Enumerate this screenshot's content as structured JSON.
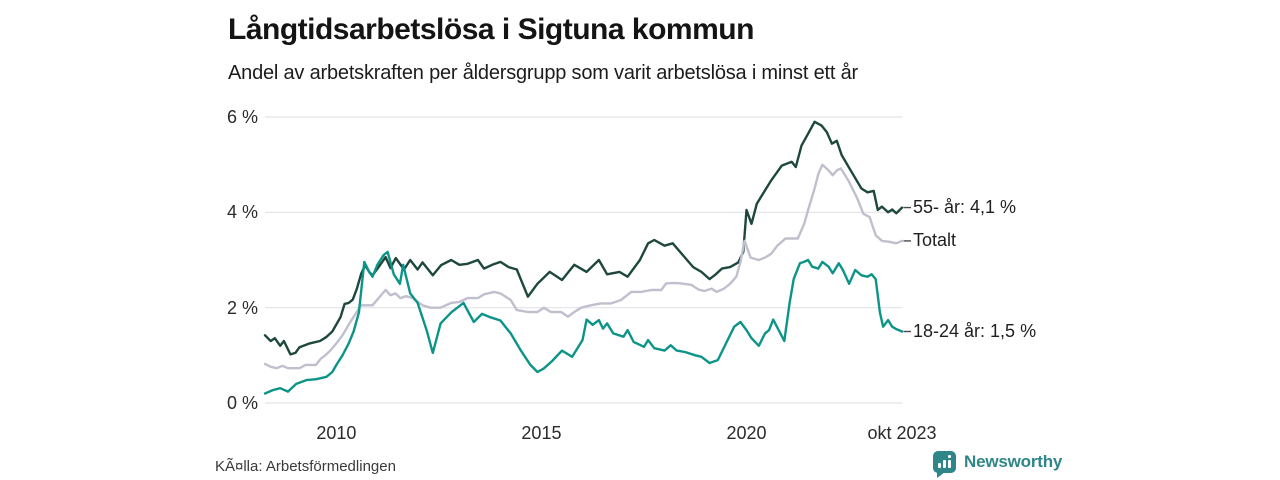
{
  "header": {
    "title": "Långtidsarbetslösa i Sigtuna kommun",
    "subtitle": "Andel av arbetskraften per åldersgrupp som varit arbetslösa i minst ett år"
  },
  "footer": {
    "source": "KÃ¤lla: Arbetsförmedlingen",
    "brand": "Newsworthy"
  },
  "colors": {
    "series_55": "#1e483d",
    "series_total": "#c0bfce",
    "series_1824": "#0d9488",
    "grid": "#e4e4ea",
    "leader_dash": "#4a4a4a",
    "brand": "#2e8688"
  },
  "chart_data": {
    "type": "line",
    "title": "Långtidsarbetslösa i Sigtuna kommun",
    "subtitle": "Andel av arbetskraften per åldersgrupp som varit arbetslösa i minst ett år",
    "source": "KÃ¤lla: Arbetsförmedlingen",
    "grid": "horizontal",
    "legend_position": "end-labels-right",
    "x_axis": {
      "range": [
        2008.26,
        2023.79
      ],
      "ticks": [
        {
          "v": 2010,
          "label": "2010"
        },
        {
          "v": 2015,
          "label": "2015"
        },
        {
          "v": 2020,
          "label": "2020"
        },
        {
          "v": 2023.79,
          "label": "okt 2023"
        }
      ]
    },
    "y_axis": {
      "range": [
        0,
        6
      ],
      "unit": "%",
      "ticks": [
        {
          "v": 0,
          "label": "0 %"
        },
        {
          "v": 2,
          "label": "2 %"
        },
        {
          "v": 4,
          "label": "4 %"
        },
        {
          "v": 6,
          "label": "6 %"
        }
      ]
    },
    "series": [
      {
        "id": "55-ar",
        "name": "55- år",
        "end_label": "55- år: 4,1 %",
        "last_value": 4.1,
        "color": "#1e483d",
        "points": [
          [
            2008.26,
            1.42
          ],
          [
            2008.4,
            1.3
          ],
          [
            2008.5,
            1.36
          ],
          [
            2008.63,
            1.2
          ],
          [
            2008.72,
            1.3
          ],
          [
            2008.88,
            1.02
          ],
          [
            2009.0,
            1.05
          ],
          [
            2009.1,
            1.17
          ],
          [
            2009.35,
            1.25
          ],
          [
            2009.6,
            1.3
          ],
          [
            2009.75,
            1.38
          ],
          [
            2009.9,
            1.5
          ],
          [
            2010.0,
            1.65
          ],
          [
            2010.1,
            1.8
          ],
          [
            2010.2,
            2.08
          ],
          [
            2010.3,
            2.1
          ],
          [
            2010.4,
            2.17
          ],
          [
            2010.5,
            2.4
          ],
          [
            2010.6,
            2.7
          ],
          [
            2010.7,
            2.89
          ],
          [
            2010.8,
            2.75
          ],
          [
            2010.88,
            2.68
          ],
          [
            2011.03,
            2.85
          ],
          [
            2011.2,
            3.06
          ],
          [
            2011.32,
            2.83
          ],
          [
            2011.45,
            3.04
          ],
          [
            2011.65,
            2.8
          ],
          [
            2011.8,
            3.0
          ],
          [
            2011.98,
            2.8
          ],
          [
            2012.1,
            2.95
          ],
          [
            2012.35,
            2.68
          ],
          [
            2012.55,
            2.89
          ],
          [
            2012.8,
            3.0
          ],
          [
            2013.0,
            2.9
          ],
          [
            2013.2,
            2.92
          ],
          [
            2013.45,
            3.0
          ],
          [
            2013.6,
            2.82
          ],
          [
            2013.8,
            2.9
          ],
          [
            2014.0,
            2.96
          ],
          [
            2014.2,
            2.85
          ],
          [
            2014.4,
            2.8
          ],
          [
            2014.67,
            2.23
          ],
          [
            2014.9,
            2.5
          ],
          [
            2015.2,
            2.75
          ],
          [
            2015.5,
            2.58
          ],
          [
            2015.8,
            2.9
          ],
          [
            2016.1,
            2.75
          ],
          [
            2016.4,
            3.0
          ],
          [
            2016.6,
            2.7
          ],
          [
            2016.9,
            2.75
          ],
          [
            2017.1,
            2.65
          ],
          [
            2017.4,
            3.0
          ],
          [
            2017.6,
            3.35
          ],
          [
            2017.75,
            3.42
          ],
          [
            2018.0,
            3.3
          ],
          [
            2018.2,
            3.35
          ],
          [
            2018.5,
            3.05
          ],
          [
            2018.7,
            2.85
          ],
          [
            2018.9,
            2.75
          ],
          [
            2019.1,
            2.6
          ],
          [
            2019.25,
            2.7
          ],
          [
            2019.4,
            2.82
          ],
          [
            2019.6,
            2.85
          ],
          [
            2019.8,
            2.95
          ],
          [
            2019.92,
            3.17
          ],
          [
            2020.0,
            4.05
          ],
          [
            2020.12,
            3.76
          ],
          [
            2020.25,
            4.18
          ],
          [
            2020.37,
            4.35
          ],
          [
            2020.6,
            4.67
          ],
          [
            2020.86,
            4.98
          ],
          [
            2021.1,
            5.06
          ],
          [
            2021.2,
            4.95
          ],
          [
            2021.34,
            5.4
          ],
          [
            2021.5,
            5.65
          ],
          [
            2021.66,
            5.9
          ],
          [
            2021.83,
            5.82
          ],
          [
            2021.96,
            5.68
          ],
          [
            2022.08,
            5.44
          ],
          [
            2022.2,
            5.5
          ],
          [
            2022.32,
            5.2
          ],
          [
            2022.56,
            4.85
          ],
          [
            2022.8,
            4.5
          ],
          [
            2022.95,
            4.42
          ],
          [
            2023.1,
            4.45
          ],
          [
            2023.2,
            4.05
          ],
          [
            2023.3,
            4.12
          ],
          [
            2023.45,
            4.0
          ],
          [
            2023.55,
            4.06
          ],
          [
            2023.65,
            3.98
          ],
          [
            2023.79,
            4.1
          ]
        ]
      },
      {
        "id": "totalt",
        "name": "Totalt",
        "end_label": "Totalt",
        "last_value": 3.4,
        "color": "#c0bfce",
        "points": [
          [
            2008.26,
            0.82
          ],
          [
            2008.4,
            0.76
          ],
          [
            2008.55,
            0.73
          ],
          [
            2008.68,
            0.78
          ],
          [
            2008.82,
            0.73
          ],
          [
            2009.1,
            0.73
          ],
          [
            2009.25,
            0.8
          ],
          [
            2009.5,
            0.8
          ],
          [
            2009.62,
            0.93
          ],
          [
            2009.73,
            1.0
          ],
          [
            2009.85,
            1.1
          ],
          [
            2010.0,
            1.25
          ],
          [
            2010.15,
            1.42
          ],
          [
            2010.34,
            1.7
          ],
          [
            2010.49,
            1.9
          ],
          [
            2010.6,
            2.05
          ],
          [
            2010.88,
            2.05
          ],
          [
            2011.03,
            2.2
          ],
          [
            2011.2,
            2.37
          ],
          [
            2011.32,
            2.26
          ],
          [
            2011.44,
            2.3
          ],
          [
            2011.56,
            2.2
          ],
          [
            2011.7,
            2.24
          ],
          [
            2011.86,
            2.2
          ],
          [
            2012.1,
            2.05
          ],
          [
            2012.3,
            2.0
          ],
          [
            2012.54,
            2.0
          ],
          [
            2012.8,
            2.1
          ],
          [
            2013.0,
            2.12
          ],
          [
            2013.2,
            2.2
          ],
          [
            2013.45,
            2.2
          ],
          [
            2013.6,
            2.28
          ],
          [
            2013.85,
            2.33
          ],
          [
            2014.0,
            2.3
          ],
          [
            2014.25,
            2.16
          ],
          [
            2014.4,
            1.95
          ],
          [
            2014.67,
            1.91
          ],
          [
            2014.9,
            1.91
          ],
          [
            2015.06,
            2.0
          ],
          [
            2015.23,
            1.91
          ],
          [
            2015.48,
            1.91
          ],
          [
            2015.65,
            1.81
          ],
          [
            2015.8,
            1.91
          ],
          [
            2015.97,
            2.0
          ],
          [
            2016.2,
            2.05
          ],
          [
            2016.45,
            2.09
          ],
          [
            2016.7,
            2.09
          ],
          [
            2016.94,
            2.16
          ],
          [
            2017.19,
            2.33
          ],
          [
            2017.43,
            2.33
          ],
          [
            2017.68,
            2.37
          ],
          [
            2017.92,
            2.37
          ],
          [
            2018.04,
            2.51
          ],
          [
            2018.24,
            2.52
          ],
          [
            2018.4,
            2.51
          ],
          [
            2018.65,
            2.48
          ],
          [
            2018.83,
            2.38
          ],
          [
            2018.97,
            2.35
          ],
          [
            2019.15,
            2.4
          ],
          [
            2019.27,
            2.33
          ],
          [
            2019.45,
            2.4
          ],
          [
            2019.6,
            2.5
          ],
          [
            2019.75,
            2.65
          ],
          [
            2019.85,
            2.95
          ],
          [
            2019.95,
            3.4
          ],
          [
            2020.1,
            3.05
          ],
          [
            2020.3,
            3.0
          ],
          [
            2020.45,
            3.05
          ],
          [
            2020.6,
            3.13
          ],
          [
            2020.75,
            3.3
          ],
          [
            2020.95,
            3.45
          ],
          [
            2021.1,
            3.45
          ],
          [
            2021.25,
            3.45
          ],
          [
            2021.4,
            3.75
          ],
          [
            2021.5,
            4.05
          ],
          [
            2021.66,
            4.5
          ],
          [
            2021.75,
            4.8
          ],
          [
            2021.85,
            5.0
          ],
          [
            2022.0,
            4.88
          ],
          [
            2022.1,
            4.78
          ],
          [
            2022.2,
            4.88
          ],
          [
            2022.3,
            4.92
          ],
          [
            2022.5,
            4.64
          ],
          [
            2022.7,
            4.29
          ],
          [
            2022.85,
            3.97
          ],
          [
            2023.0,
            3.9
          ],
          [
            2023.15,
            3.52
          ],
          [
            2023.3,
            3.4
          ],
          [
            2023.5,
            3.38
          ],
          [
            2023.65,
            3.35
          ],
          [
            2023.79,
            3.4
          ]
        ]
      },
      {
        "id": "18-24-ar",
        "name": "18-24 år",
        "end_label": "18-24 år: 1,5 %",
        "last_value": 1.5,
        "color": "#0d9488",
        "points": [
          [
            2008.26,
            0.2
          ],
          [
            2008.45,
            0.27
          ],
          [
            2008.63,
            0.31
          ],
          [
            2008.82,
            0.24
          ],
          [
            2009.02,
            0.4
          ],
          [
            2009.27,
            0.48
          ],
          [
            2009.51,
            0.5
          ],
          [
            2009.76,
            0.55
          ],
          [
            2009.9,
            0.65
          ],
          [
            2010.0,
            0.8
          ],
          [
            2010.15,
            1.0
          ],
          [
            2010.3,
            1.25
          ],
          [
            2010.42,
            1.5
          ],
          [
            2010.55,
            1.9
          ],
          [
            2010.68,
            2.96
          ],
          [
            2010.8,
            2.75
          ],
          [
            2010.88,
            2.65
          ],
          [
            2011.0,
            2.9
          ],
          [
            2011.15,
            3.1
          ],
          [
            2011.25,
            3.17
          ],
          [
            2011.4,
            2.7
          ],
          [
            2011.55,
            2.5
          ],
          [
            2011.63,
            2.9
          ],
          [
            2011.8,
            2.3
          ],
          [
            2011.98,
            2.1
          ],
          [
            2012.2,
            1.53
          ],
          [
            2012.35,
            1.05
          ],
          [
            2012.54,
            1.67
          ],
          [
            2012.8,
            1.9
          ],
          [
            2013.1,
            2.1
          ],
          [
            2013.35,
            1.7
          ],
          [
            2013.55,
            1.87
          ],
          [
            2013.75,
            1.8
          ],
          [
            2014.0,
            1.73
          ],
          [
            2014.25,
            1.46
          ],
          [
            2014.5,
            1.1
          ],
          [
            2014.73,
            0.8
          ],
          [
            2014.9,
            0.65
          ],
          [
            2015.05,
            0.72
          ],
          [
            2015.25,
            0.87
          ],
          [
            2015.5,
            1.1
          ],
          [
            2015.75,
            0.97
          ],
          [
            2016.0,
            1.32
          ],
          [
            2016.1,
            1.75
          ],
          [
            2016.25,
            1.64
          ],
          [
            2016.4,
            1.74
          ],
          [
            2016.5,
            1.56
          ],
          [
            2016.6,
            1.67
          ],
          [
            2016.75,
            1.46
          ],
          [
            2017.0,
            1.39
          ],
          [
            2017.1,
            1.53
          ],
          [
            2017.25,
            1.28
          ],
          [
            2017.5,
            1.18
          ],
          [
            2017.6,
            1.32
          ],
          [
            2017.75,
            1.15
          ],
          [
            2018.0,
            1.1
          ],
          [
            2018.15,
            1.21
          ],
          [
            2018.3,
            1.1
          ],
          [
            2018.5,
            1.07
          ],
          [
            2018.75,
            1.0
          ],
          [
            2018.9,
            0.97
          ],
          [
            2019.1,
            0.84
          ],
          [
            2019.3,
            0.9
          ],
          [
            2019.5,
            1.25
          ],
          [
            2019.7,
            1.6
          ],
          [
            2019.85,
            1.7
          ],
          [
            2020.0,
            1.53
          ],
          [
            2020.12,
            1.36
          ],
          [
            2020.3,
            1.2
          ],
          [
            2020.45,
            1.46
          ],
          [
            2020.55,
            1.53
          ],
          [
            2020.65,
            1.75
          ],
          [
            2020.8,
            1.5
          ],
          [
            2020.92,
            1.3
          ],
          [
            2021.05,
            2.1
          ],
          [
            2021.15,
            2.6
          ],
          [
            2021.3,
            2.93
          ],
          [
            2021.4,
            2.96
          ],
          [
            2021.5,
            3.0
          ],
          [
            2021.6,
            2.86
          ],
          [
            2021.75,
            2.82
          ],
          [
            2021.85,
            2.96
          ],
          [
            2022.0,
            2.86
          ],
          [
            2022.1,
            2.72
          ],
          [
            2022.25,
            2.93
          ],
          [
            2022.35,
            2.79
          ],
          [
            2022.5,
            2.5
          ],
          [
            2022.65,
            2.79
          ],
          [
            2022.8,
            2.68
          ],
          [
            2022.95,
            2.65
          ],
          [
            2023.05,
            2.7
          ],
          [
            2023.15,
            2.6
          ],
          [
            2023.25,
            1.9
          ],
          [
            2023.33,
            1.6
          ],
          [
            2023.45,
            1.74
          ],
          [
            2023.55,
            1.6
          ],
          [
            2023.65,
            1.55
          ],
          [
            2023.79,
            1.5
          ]
        ]
      }
    ]
  }
}
